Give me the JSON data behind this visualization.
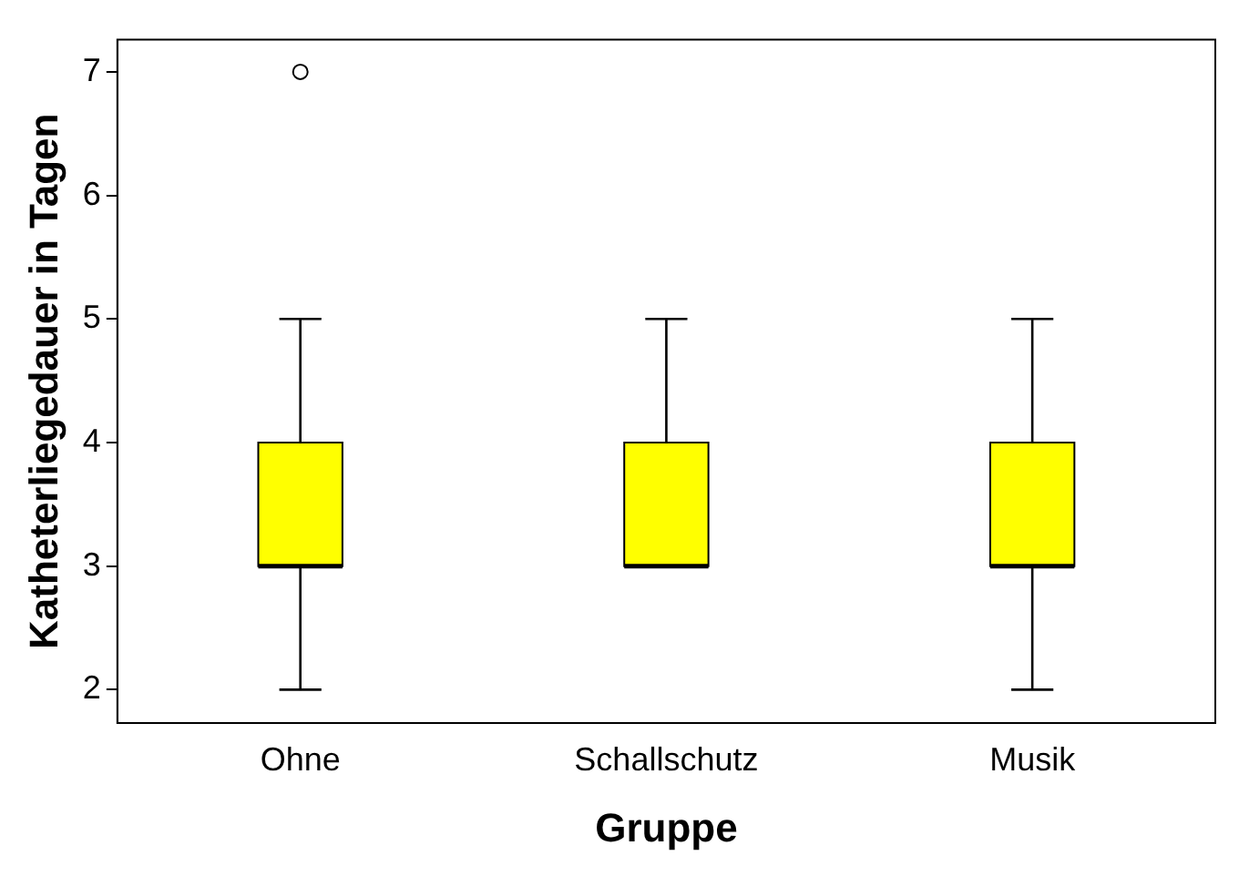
{
  "chart_data": {
    "type": "box",
    "xlabel": "Gruppe",
    "ylabel": "Katheterliegedauer in Tagen",
    "categories": [
      "Ohne",
      "Schallschutz",
      "Musik"
    ],
    "boxes": [
      {
        "low": 2,
        "q1": 3,
        "median": 3,
        "q3": 4,
        "high": 5,
        "outliers": [
          7
        ]
      },
      {
        "low": 3,
        "q1": 3,
        "median": 3,
        "q3": 4,
        "high": 5
      },
      {
        "low": 2,
        "q1": 3,
        "median": 3,
        "q3": 4,
        "high": 5
      }
    ],
    "color": "#ffff00",
    "ylim": [
      1.73,
      7.26
    ],
    "yticks": [
      2,
      3,
      4,
      5,
      6,
      7
    ],
    "grid": false,
    "legend": false
  }
}
